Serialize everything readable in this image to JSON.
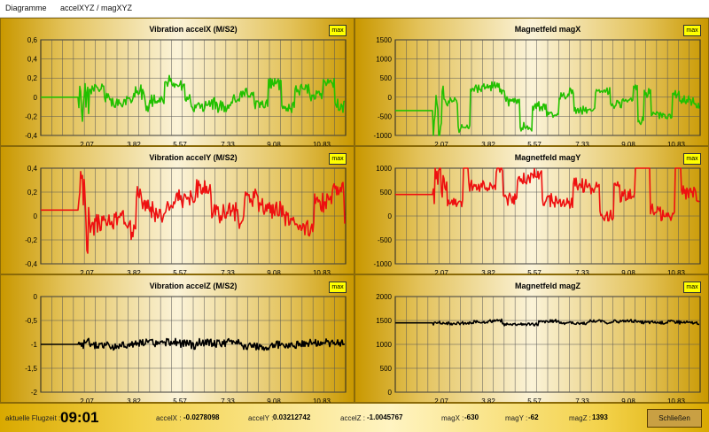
{
  "menu": {
    "tab1": "Diagramme",
    "tab2": "accelXYZ / magXYZ"
  },
  "charts": [
    {
      "title": "Vibration  accelX (M/S2)",
      "color": "#22c000",
      "ymin": -0.4,
      "ymax": 0.6,
      "yticks": [
        "0,6",
        "0,4",
        "0,2",
        "0",
        "-0,2",
        "-0,4"
      ],
      "baseline": 0,
      "amp": 0.15,
      "offsetSeg": 0.08,
      "ns": 0.04,
      "seed": 1,
      "max_label": "max"
    },
    {
      "title": "Magnetfeld magX",
      "color": "#22c000",
      "ymin": -1000,
      "ymax": 1500,
      "yticks": [
        "1500",
        "1000",
        "500",
        "0",
        "-500",
        "-1000"
      ],
      "baseline": -350,
      "amp": 600,
      "offsetSeg": 150,
      "ns": 80,
      "seed": 2,
      "max_label": "max"
    },
    {
      "title": "Vibration  accelY (M/S2)",
      "color": "#ee1010",
      "ymin": -0.4,
      "ymax": 0.4,
      "yticks": [
        "0,4",
        "0,2",
        "0",
        "-0,2",
        "-0,4"
      ],
      "baseline": 0.05,
      "amp": 0.18,
      "offsetSeg": 0.12,
      "ns": 0.035,
      "seed": 3,
      "max_label": "max"
    },
    {
      "title": "Magnetfeld magY",
      "color": "#ee1010",
      "ymin": -1000,
      "ymax": 1000,
      "yticks": [
        "1000",
        "500",
        "0",
        "-500",
        "-1000"
      ],
      "baseline": 450,
      "amp": 700,
      "offsetSeg": 200,
      "ns": 70,
      "seed": 4,
      "max_label": "max"
    },
    {
      "title": "Vibration  accelZ (M/S2)",
      "color": "#000000",
      "ymin": -2,
      "ymax": 0,
      "yticks": [
        "0",
        "-0,5",
        "-1",
        "-1,5",
        "-2"
      ],
      "baseline": -1,
      "amp": 0.06,
      "offsetSeg": 0.02,
      "ns": 0.08,
      "seed": 5,
      "max_label": "max"
    },
    {
      "title": "Magnetfeld magZ",
      "color": "#000000",
      "ymin": 0,
      "ymax": 2000,
      "yticks": [
        "2000",
        "1500",
        "1000",
        "500",
        "0"
      ],
      "baseline": 1450,
      "amp": 40,
      "offsetSeg": 20,
      "ns": 30,
      "seed": 6,
      "max_label": "max"
    }
  ],
  "x_ticks": [
    "2,07",
    "3,82",
    "5,57",
    "7,33",
    "9,08",
    "10,83"
  ],
  "status": {
    "flugzeit_label": "aktuelle Flugzeit :",
    "flugzeit": "09:01",
    "accelX_label": "accelX :",
    "accelX": "-0.0278098",
    "accelY_label": "accelY :",
    "accelY": "0.03212742",
    "accelZ_label": "accelZ :",
    "accelZ": "-1.0045767",
    "magX_label": "magX :",
    "magX": "-630",
    "magY_label": "magY :",
    "magY": "-62",
    "magZ_label": "magZ :",
    "magZ": "1393",
    "close_label": "Schließen"
  }
}
